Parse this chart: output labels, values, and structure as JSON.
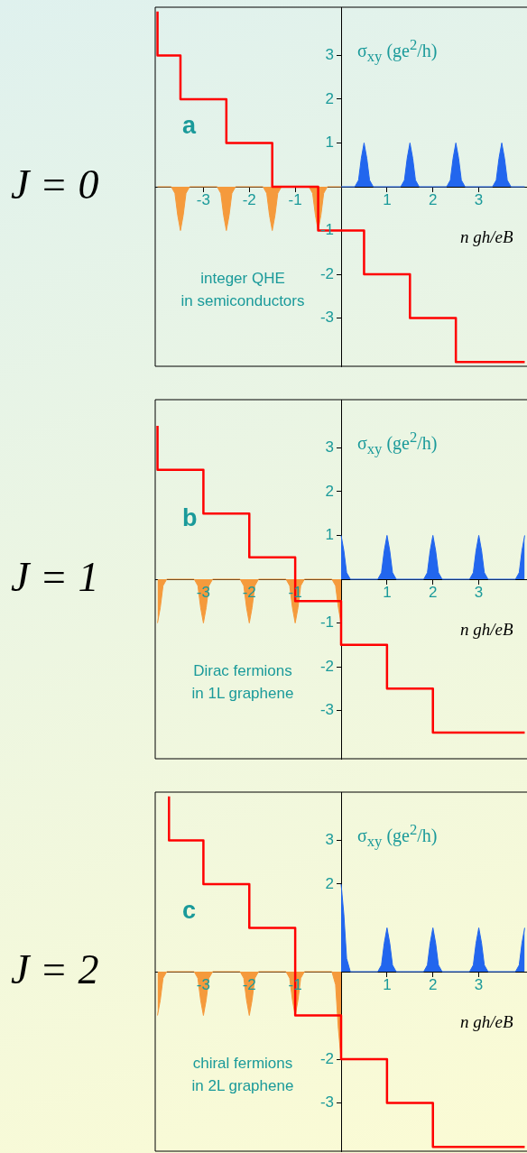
{
  "chart_data": [
    {
      "type": "line",
      "title": "J = 0",
      "xlabel": "n gh/eB",
      "ylabel": "σ$_{xy}$ (ge$^{2}$/h)",
      "xlim": [
        -4.05,
        4.05
      ],
      "ylim": [
        -4.1,
        4.1
      ],
      "xticks": [
        -3,
        -2,
        -1,
        1,
        2,
        3
      ],
      "yticks": [
        -3,
        -2,
        -1,
        1,
        2,
        3
      ],
      "grid": false,
      "annotations": [
        "a",
        "integer QHE\nin semiconductors"
      ],
      "series": [
        {
          "type": "step",
          "color": "#ff0000",
          "x": [
            -4,
            -3.5,
            -2.5,
            -1.5,
            -0.5,
            0.5,
            1.5,
            2.5,
            3.5,
            4
          ],
          "values": [
            4,
            3,
            2,
            1,
            0,
            -1,
            -2,
            -3,
            -4,
            -4
          ]
        },
        {
          "type": "area",
          "color": "#2266ee",
          "x": [
            0,
            0.3,
            0.38,
            0.44,
            0.5,
            0.56,
            0.62,
            0.7,
            1.3,
            1.38,
            1.44,
            1.5,
            1.56,
            1.62,
            1.7,
            2.3,
            2.38,
            2.44,
            2.5,
            2.56,
            2.62,
            2.7,
            3.3,
            3.38,
            3.44,
            3.5,
            3.56,
            3.62,
            3.7,
            4
          ],
          "values": [
            0,
            0,
            0.15,
            0.65,
            1,
            0.65,
            0.15,
            0,
            0,
            0.15,
            0.65,
            1,
            0.65,
            0.15,
            0,
            0,
            0.15,
            0.65,
            1,
            0.65,
            0.15,
            0,
            0,
            0.15,
            0.65,
            1,
            0.65,
            0.15,
            0,
            0
          ]
        },
        {
          "type": "area",
          "color": "#f59a3c",
          "x": [
            -4,
            -3.7,
            -3.62,
            -3.56,
            -3.5,
            -3.44,
            -3.38,
            -3.3,
            -2.7,
            -2.62,
            -2.56,
            -2.5,
            -2.44,
            -2.38,
            -2.3,
            -1.7,
            -1.62,
            -1.56,
            -1.5,
            -1.44,
            -1.38,
            -1.3,
            -0.7,
            -0.62,
            -0.56,
            -0.5,
            -0.44,
            -0.38,
            -0.3,
            0
          ],
          "values": [
            0,
            0,
            -0.15,
            -0.65,
            -1,
            -0.65,
            -0.15,
            0,
            0,
            -0.15,
            -0.65,
            -1,
            -0.65,
            -0.15,
            0,
            0,
            -0.15,
            -0.65,
            -1,
            -0.65,
            -0.15,
            0,
            0,
            -0.15,
            -0.65,
            -1,
            -0.65,
            -0.15,
            0,
            0
          ]
        }
      ]
    },
    {
      "type": "line",
      "title": "J = 1",
      "xlabel": "n gh/eB",
      "ylabel": "σ$_{xy}$ (ge$^{2}$/h)",
      "xlim": [
        -4.05,
        4.05
      ],
      "ylim": [
        -4.1,
        4.1
      ],
      "xticks": [
        -3,
        -2,
        -1,
        1,
        2,
        3
      ],
      "yticks": [
        -3,
        -2,
        -1,
        1,
        2,
        3
      ],
      "grid": false,
      "annotations": [
        "b",
        "Dirac fermions\nin 1L graphene"
      ],
      "series": [
        {
          "type": "step",
          "color": "#ff0000",
          "x": [
            -4,
            -3,
            -2,
            -1,
            0,
            1,
            2,
            3,
            4
          ],
          "values": [
            3.5,
            2.5,
            1.5,
            0.5,
            -0.5,
            -1.5,
            -2.5,
            -3.5,
            -3.5
          ]
        },
        {
          "type": "area",
          "color": "#2266ee",
          "x": [
            0,
            0.06,
            0.12,
            0.2,
            0.8,
            0.88,
            0.94,
            1,
            1.06,
            1.12,
            1.2,
            1.8,
            1.88,
            1.94,
            2,
            2.06,
            2.12,
            2.2,
            2.8,
            2.88,
            2.94,
            3,
            3.06,
            3.12,
            3.2,
            3.8,
            3.88,
            3.94,
            4
          ],
          "values": [
            1,
            0.65,
            0.15,
            0,
            0,
            0.15,
            0.65,
            1,
            0.65,
            0.15,
            0,
            0,
            0.15,
            0.65,
            1,
            0.65,
            0.15,
            0,
            0,
            0.15,
            0.65,
            1,
            0.65,
            0.15,
            0,
            0,
            0.15,
            0.65,
            1
          ]
        },
        {
          "type": "area",
          "color": "#f59a3c",
          "x": [
            -4,
            -3.94,
            -3.88,
            -3.8,
            -3.2,
            -3.12,
            -3.06,
            -3,
            -2.94,
            -2.88,
            -2.8,
            -2.2,
            -2.12,
            -2.06,
            -2,
            -1.94,
            -1.88,
            -1.8,
            -1.2,
            -1.12,
            -1.06,
            -1,
            -0.94,
            -0.88,
            -0.8,
            -0.2,
            -0.12,
            -0.06,
            0
          ],
          "values": [
            -1,
            -0.65,
            -0.15,
            0,
            0,
            -0.15,
            -0.65,
            -1,
            -0.65,
            -0.15,
            0,
            0,
            -0.15,
            -0.65,
            -1,
            -0.65,
            -0.15,
            0,
            0,
            -0.15,
            -0.65,
            -1,
            -0.65,
            -0.15,
            0,
            0,
            -0.15,
            -0.65,
            -1
          ]
        }
      ]
    },
    {
      "type": "line",
      "title": "J = 2",
      "xlabel": "n gh/eB",
      "ylabel": "σ$_{xy}$ (ge$^{2}$/h)",
      "xlim": [
        -4.05,
        4.05
      ],
      "ylim": [
        -4.1,
        4.1
      ],
      "xticks": [
        -3,
        -2,
        -1,
        1,
        2,
        3
      ],
      "yticks": [
        -3,
        -2,
        2,
        3
      ],
      "grid": false,
      "annotations": [
        "c",
        "chiral fermions\nin 2L graphene"
      ],
      "series": [
        {
          "type": "step",
          "color": "#ff0000",
          "x": [
            -3.75,
            -3,
            -2,
            -1,
            0,
            1,
            2,
            3,
            4
          ],
          "values": [
            4,
            3,
            2,
            1,
            -1,
            -2,
            -3,
            -4,
            -4
          ]
        },
        {
          "type": "area",
          "color": "#2266ee",
          "x": [
            0,
            0.06,
            0.12,
            0.2,
            0.8,
            0.88,
            0.94,
            1,
            1.06,
            1.12,
            1.2,
            1.8,
            1.88,
            1.94,
            2,
            2.06,
            2.12,
            2.2,
            2.8,
            2.88,
            2.94,
            3,
            3.06,
            3.12,
            3.2,
            3.8,
            3.88,
            3.94,
            4
          ],
          "values": [
            2,
            1.3,
            0.3,
            0,
            0,
            0.15,
            0.65,
            1,
            0.65,
            0.15,
            0,
            0,
            0.15,
            0.65,
            1,
            0.65,
            0.15,
            0,
            0,
            0.15,
            0.65,
            1,
            0.65,
            0.15,
            0,
            0,
            0.15,
            0.65,
            1
          ]
        },
        {
          "type": "area",
          "color": "#f59a3c",
          "x": [
            -4,
            -3.94,
            -3.88,
            -3.8,
            -3.2,
            -3.12,
            -3.06,
            -3,
            -2.94,
            -2.88,
            -2.8,
            -2.2,
            -2.12,
            -2.06,
            -2,
            -1.94,
            -1.88,
            -1.8,
            -1.2,
            -1.12,
            -1.06,
            -1,
            -0.94,
            -0.88,
            -0.8,
            -0.2,
            -0.12,
            -0.06,
            0
          ],
          "values": [
            -1,
            -0.65,
            -0.15,
            0,
            0,
            -0.15,
            -0.65,
            -1,
            -0.65,
            -0.15,
            0,
            0,
            -0.15,
            -0.65,
            -1,
            -0.65,
            -0.15,
            0,
            0,
            -0.15,
            -0.65,
            -1,
            -0.65,
            -0.15,
            0,
            0,
            -0.3,
            -1.3,
            -2
          ]
        }
      ]
    }
  ]
}
